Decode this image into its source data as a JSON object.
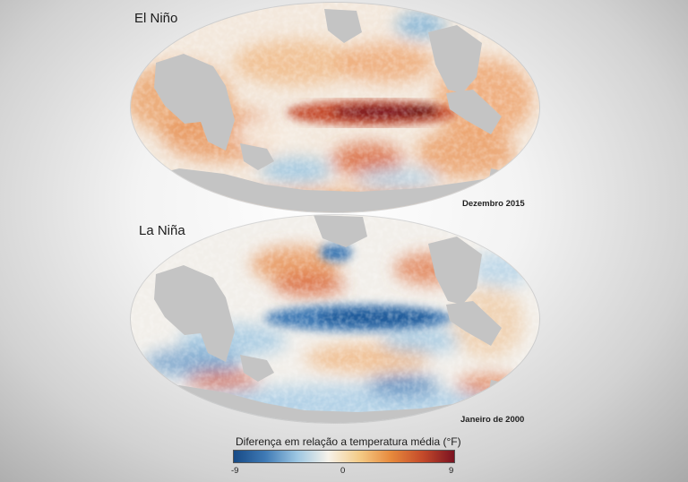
{
  "maps": [
    {
      "title": "El Niño",
      "date": "Dezembro 2015"
    },
    {
      "title": "La Niña",
      "date": "Janeiro de 2000"
    }
  ],
  "legend": {
    "title": "Diferença em relação a temperatura média (°F)",
    "min": "-9",
    "mid": "0",
    "max": "9",
    "colors": [
      "#174a86",
      "#3f7ab5",
      "#9cc6e2",
      "#f6f2ea",
      "#f4cb86",
      "#e7893c",
      "#c44a2a",
      "#7a1221"
    ]
  },
  "colors": {
    "land": "#c4c4c4",
    "warm_anomaly": "#c44a2a",
    "cold_anomaly": "#3f7ab5",
    "neutral_ocean": "#f6f2ea"
  }
}
